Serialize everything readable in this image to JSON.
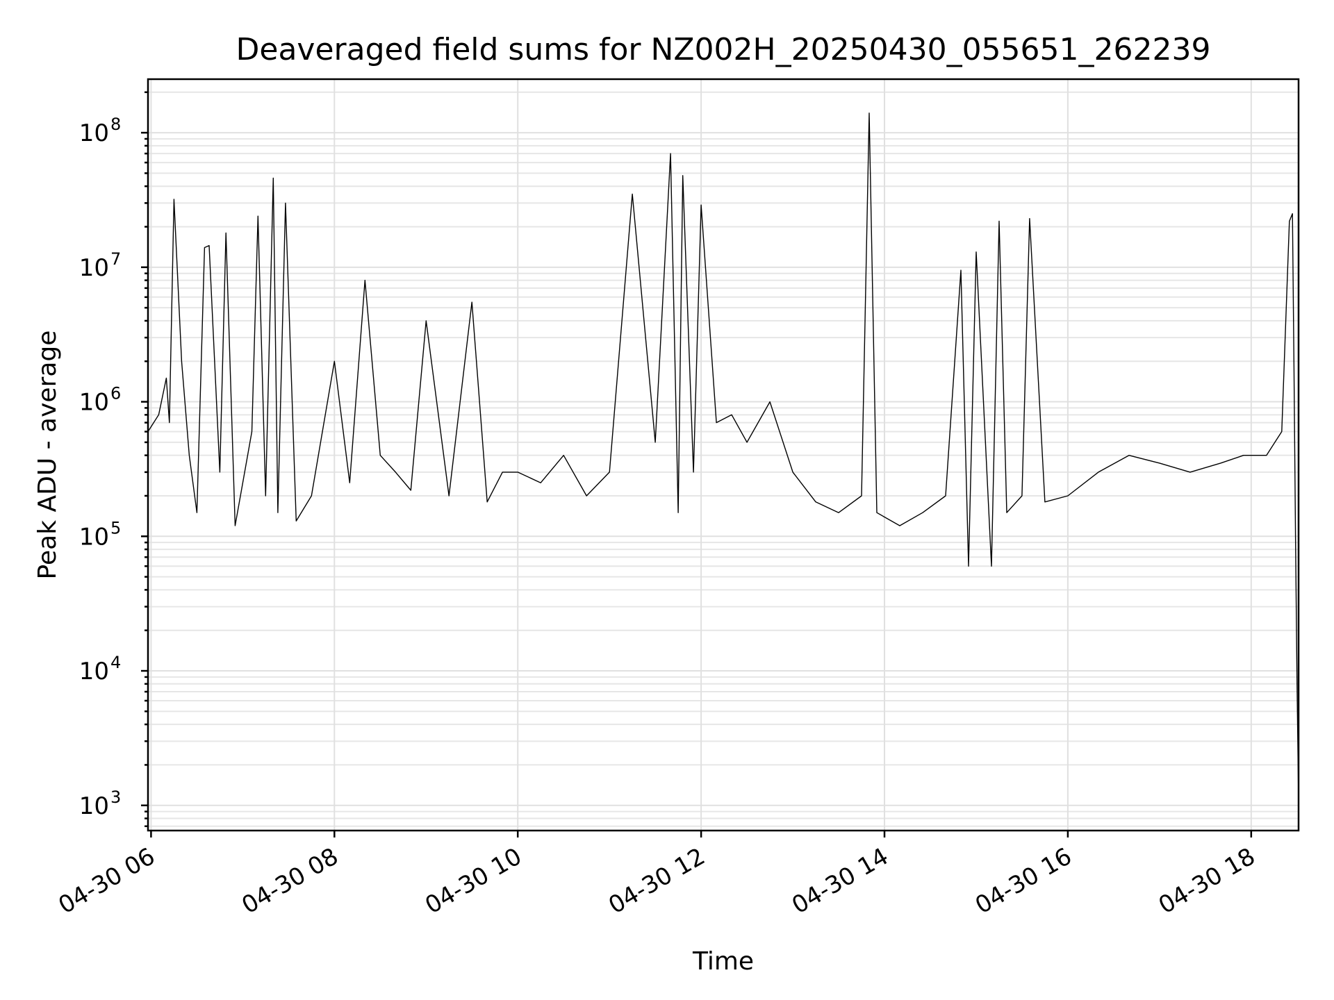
{
  "chart_data": {
    "type": "line",
    "title": "Deaveraged field sums for NZ002H_20250430_055651_262239",
    "xlabel": "Time",
    "ylabel": "Peak ADU - average",
    "yscale": "log",
    "ylim": [
      650,
      250000000
    ],
    "xlim": [
      "2025-04-30 05:58",
      "2025-04-30 18:31"
    ],
    "grid": true,
    "x_ticks": [
      "04-30 06",
      "04-30 08",
      "04-30 10",
      "04-30 12",
      "04-30 14",
      "04-30 16",
      "04-30 18"
    ],
    "y_ticks": [
      {
        "value": 1000,
        "base": "10",
        "exp": "3"
      },
      {
        "value": 10000,
        "base": "10",
        "exp": "4"
      },
      {
        "value": 100000,
        "base": "10",
        "exp": "5"
      },
      {
        "value": 1000000,
        "base": "10",
        "exp": "6"
      },
      {
        "value": 10000000,
        "base": "10",
        "exp": "7"
      },
      {
        "value": 100000000,
        "base": "10",
        "exp": "8"
      }
    ],
    "series": [
      {
        "color": "#000000",
        "points": [
          [
            "2025-04-30 05:58",
            600000
          ],
          [
            "2025-04-30 06:05",
            800000
          ],
          [
            "2025-04-30 06:10",
            1500000
          ],
          [
            "2025-04-30 06:12",
            700000
          ],
          [
            "2025-04-30 06:15",
            32000000
          ],
          [
            "2025-04-30 06:20",
            2000000
          ],
          [
            "2025-04-30 06:25",
            400000
          ],
          [
            "2025-04-30 06:30",
            150000
          ],
          [
            "2025-04-30 06:35",
            14000000
          ],
          [
            "2025-04-30 06:38",
            14500000
          ],
          [
            "2025-04-30 06:45",
            300000
          ],
          [
            "2025-04-30 06:49",
            18000000
          ],
          [
            "2025-04-30 06:55",
            120000
          ],
          [
            "2025-04-30 07:00",
            250000
          ],
          [
            "2025-04-30 07:06",
            600000
          ],
          [
            "2025-04-30 07:10",
            24000000
          ],
          [
            "2025-04-30 07:15",
            200000
          ],
          [
            "2025-04-30 07:20",
            46000000
          ],
          [
            "2025-04-30 07:23",
            150000
          ],
          [
            "2025-04-30 07:28",
            30000000
          ],
          [
            "2025-04-30 07:35",
            130000
          ],
          [
            "2025-04-30 07:45",
            200000
          ],
          [
            "2025-04-30 08:00",
            2000000
          ],
          [
            "2025-04-30 08:10",
            250000
          ],
          [
            "2025-04-30 08:20",
            8000000
          ],
          [
            "2025-04-30 08:30",
            400000
          ],
          [
            "2025-04-30 08:40",
            300000
          ],
          [
            "2025-04-30 08:50",
            220000
          ],
          [
            "2025-04-30 09:00",
            4000000
          ],
          [
            "2025-04-30 09:15",
            200000
          ],
          [
            "2025-04-30 09:30",
            5500000
          ],
          [
            "2025-04-30 09:40",
            180000
          ],
          [
            "2025-04-30 09:50",
            300000
          ],
          [
            "2025-04-30 10:00",
            300000
          ],
          [
            "2025-04-30 10:15",
            250000
          ],
          [
            "2025-04-30 10:30",
            400000
          ],
          [
            "2025-04-30 10:45",
            200000
          ],
          [
            "2025-04-30 11:00",
            300000
          ],
          [
            "2025-04-30 11:15",
            35000000
          ],
          [
            "2025-04-30 11:30",
            500000
          ],
          [
            "2025-04-30 11:40",
            70000000
          ],
          [
            "2025-04-30 11:45",
            150000
          ],
          [
            "2025-04-30 11:48",
            48000000
          ],
          [
            "2025-04-30 11:55",
            300000
          ],
          [
            "2025-04-30 12:00",
            29000000
          ],
          [
            "2025-04-30 12:10",
            700000
          ],
          [
            "2025-04-30 12:20",
            800000
          ],
          [
            "2025-04-30 12:30",
            500000
          ],
          [
            "2025-04-30 12:45",
            1000000
          ],
          [
            "2025-04-30 13:00",
            300000
          ],
          [
            "2025-04-30 13:15",
            180000
          ],
          [
            "2025-04-30 13:30",
            150000
          ],
          [
            "2025-04-30 13:45",
            200000
          ],
          [
            "2025-04-30 13:50",
            140000000
          ],
          [
            "2025-04-30 13:55",
            150000
          ],
          [
            "2025-04-30 14:10",
            120000
          ],
          [
            "2025-04-30 14:25",
            150000
          ],
          [
            "2025-04-30 14:40",
            200000
          ],
          [
            "2025-04-30 14:50",
            9500000
          ],
          [
            "2025-04-30 14:55",
            60000
          ],
          [
            "2025-04-30 15:00",
            13000000
          ],
          [
            "2025-04-30 15:10",
            60000
          ],
          [
            "2025-04-30 15:15",
            22000000
          ],
          [
            "2025-04-30 15:20",
            150000
          ],
          [
            "2025-04-30 15:30",
            200000
          ],
          [
            "2025-04-30 15:35",
            23000000
          ],
          [
            "2025-04-30 15:45",
            180000
          ],
          [
            "2025-04-30 16:00",
            200000
          ],
          [
            "2025-04-30 16:20",
            300000
          ],
          [
            "2025-04-30 16:40",
            400000
          ],
          [
            "2025-04-30 17:00",
            350000
          ],
          [
            "2025-04-30 17:20",
            300000
          ],
          [
            "2025-04-30 17:40",
            350000
          ],
          [
            "2025-04-30 17:55",
            400000
          ],
          [
            "2025-04-30 18:10",
            400000
          ],
          [
            "2025-04-30 18:20",
            600000
          ],
          [
            "2025-04-30 18:25",
            22000000
          ],
          [
            "2025-04-30 18:27",
            25000000
          ],
          [
            "2025-04-30 18:28",
            1800000
          ],
          [
            "2025-04-30 18:29",
            100000
          ],
          [
            "2025-04-30 18:30",
            8000
          ],
          [
            "2025-04-30 18:31",
            1100
          ]
        ]
      }
    ]
  }
}
